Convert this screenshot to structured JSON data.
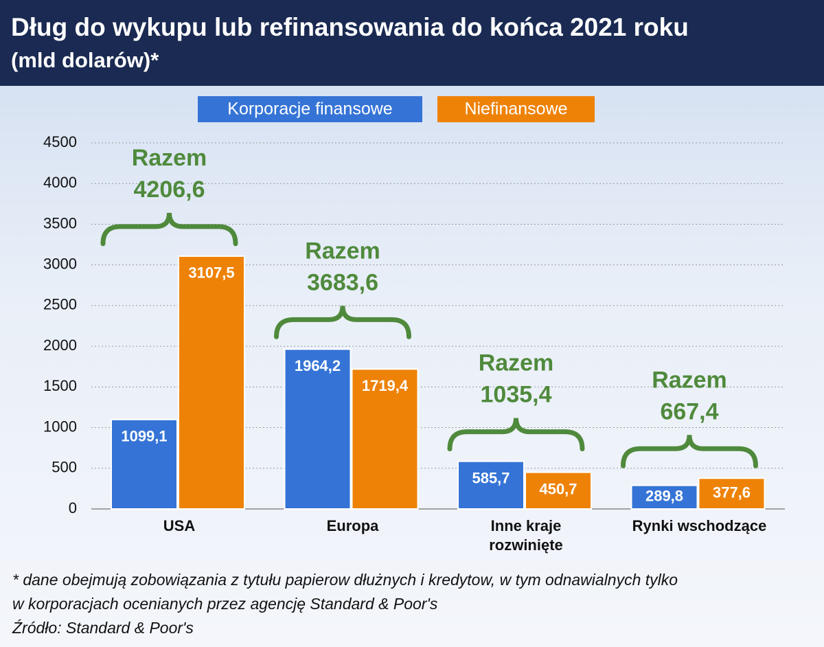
{
  "chart_data": {
    "type": "bar",
    "title": "Dług do wykupu lub refinansowania do końca 2021 roku",
    "subtitle": "(mld dolarów)*",
    "categories": [
      "USA",
      "Europa",
      "Inne kraje\nrozwinięte",
      "Rynki wschodzące"
    ],
    "series": [
      {
        "name": "Korporacje finansowe",
        "color": "#3574d6",
        "values": [
          1099.1,
          1964.2,
          585.7,
          289.8
        ],
        "value_labels": [
          "1099,1",
          "1964,2",
          "585,7",
          "289,8"
        ]
      },
      {
        "name": "Niefinansowe",
        "color": "#ee8207",
        "values": [
          3107.5,
          1719.4,
          450.7,
          377.6
        ],
        "value_labels": [
          "3107,5",
          "1719,4",
          "450,7",
          "377,6"
        ]
      }
    ],
    "total_title": "Razem",
    "totals": [
      4206.6,
      3683.6,
      1035.4,
      667.4
    ],
    "total_labels": [
      "4206,6",
      "3683,6",
      "1035,4",
      "667,4"
    ],
    "ylim": [
      0,
      4500
    ],
    "yticks": [
      0,
      500,
      1000,
      1500,
      2000,
      2500,
      3000,
      3500,
      4000,
      4500
    ],
    "grid": true,
    "footnotes": [
      "* dane obejmują zobowiązania z tytułu papierow dłużnych i kredytow, w tym odnawialnych tylko",
      "w korporacjach ocenianych przez agencję Standard & Poor's",
      "Źródło: Standard & Poor's"
    ]
  }
}
